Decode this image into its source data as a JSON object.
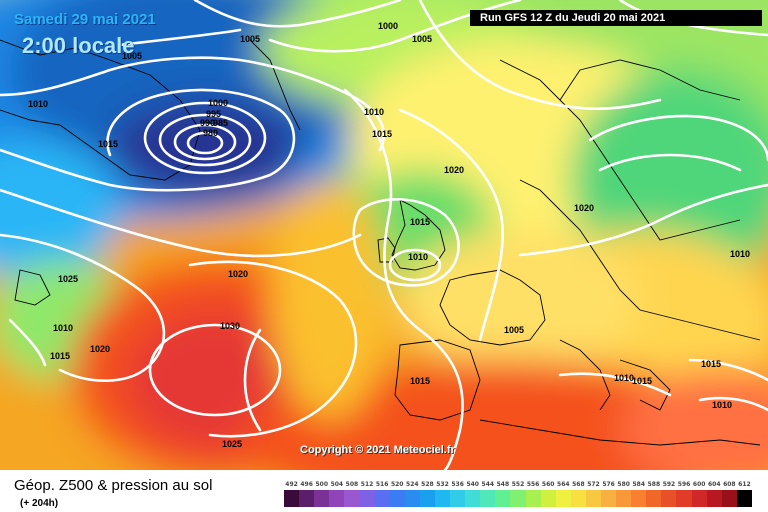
{
  "header": {
    "valid_date": "Samedi 29 mai 2021",
    "local_time": "2:00 locale",
    "run_info": "Run GFS 12 Z du Jeudi 20 mai 2021"
  },
  "copyright": "Copyright © 2021 Meteociel.fr",
  "legend": {
    "title": "Géop. Z500 & pression au sol",
    "subtitle": "(+ 204h)",
    "scale_values": [
      "492",
      "496",
      "500",
      "504",
      "508",
      "512",
      "516",
      "520",
      "524",
      "528",
      "532",
      "536",
      "540",
      "544",
      "548",
      "552",
      "556",
      "560",
      "564",
      "568",
      "572",
      "576",
      "580",
      "584",
      "588",
      "592",
      "596",
      "600",
      "604",
      "608",
      "612"
    ],
    "scale_colors": [
      "#3a0a3a",
      "#5a1e6a",
      "#7a3296",
      "#8f44b8",
      "#9a58d0",
      "#7e62e6",
      "#5a6ef2",
      "#3a7cf2",
      "#2a8cf0",
      "#1aa0ee",
      "#20b8f0",
      "#30cce8",
      "#40dcd8",
      "#50e8b8",
      "#60f094",
      "#80f070",
      "#a8f050",
      "#d0f040",
      "#f0f040",
      "#f8e040",
      "#f8c840",
      "#f8b040",
      "#f89838",
      "#f88030",
      "#f06828",
      "#e85028",
      "#e03c28",
      "#d02828",
      "#b81820",
      "#981018",
      "#000000"
    ]
  },
  "isobars": {
    "labels": [
      "1005",
      "1000",
      "1005",
      "1005",
      "1010",
      "1000",
      "995",
      "990",
      "985",
      "980",
      "1015",
      "1010",
      "1015",
      "1020",
      "1015",
      "1010",
      "1020",
      "1010",
      "1025",
      "1020",
      "1030",
      "1010",
      "1015",
      "1020",
      "1015",
      "1010",
      "1015",
      "1015",
      "1010",
      "1025",
      "1005"
    ]
  },
  "colors": {
    "low_pressure_core": "#1a237e",
    "deep_blue": "#1565c0",
    "cyan": "#29b6f6",
    "green": "#66bb6a",
    "yellow": "#f5f060",
    "orange": "#f7931e",
    "red": "#e53935",
    "isobar_line": "#ffffff",
    "coastline": "#000000"
  }
}
